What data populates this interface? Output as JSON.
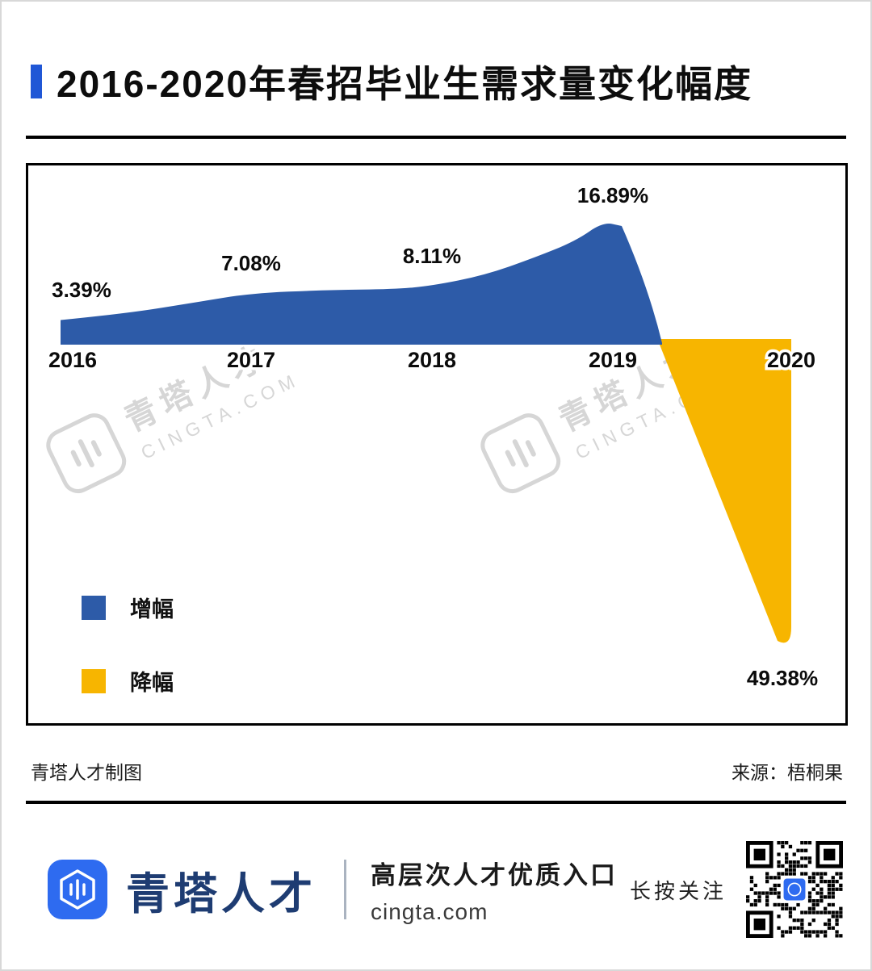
{
  "title": {
    "text": "2016-2020年春招毕业生需求量变化幅度"
  },
  "chart_data": {
    "type": "area",
    "title": "2016-2020年春招毕业生需求量变化幅度",
    "categories": [
      "2016",
      "2017",
      "2018",
      "2019",
      "2020"
    ],
    "series": [
      {
        "name": "增幅",
        "color": "#2d5ba8",
        "values": [
          3.39,
          7.08,
          8.11,
          16.89,
          null
        ]
      },
      {
        "name": "降幅",
        "color": "#f7b500",
        "values": [
          null,
          null,
          null,
          null,
          -49.38
        ]
      }
    ],
    "data_labels": [
      "3.39%",
      "7.08%",
      "8.11%",
      "16.89%",
      "49.38%"
    ],
    "legend": [
      {
        "label": "增幅",
        "color": "#2d5ba8"
      },
      {
        "label": "降幅",
        "color": "#f7b500"
      }
    ],
    "legend_position": "inside-bottom-left",
    "baseline": 0,
    "ylim": [
      -55,
      20
    ],
    "grid": false
  },
  "watermark": {
    "brand": "青塔人才",
    "site": "CINGTA.COM"
  },
  "footer": {
    "credit": "青塔人才制图",
    "source": "来源：梧桐果"
  },
  "branding": {
    "logo_text": "青塔人才",
    "tagline": "高层次人才优质入口",
    "site": "cingta.com",
    "follow": "长按关注"
  },
  "colors": {
    "accent": "#2057d6",
    "increase": "#2d5ba8",
    "decrease": "#f7b500",
    "logo_blue": "#2e6bf0",
    "watermark": "#d6d6d6"
  }
}
